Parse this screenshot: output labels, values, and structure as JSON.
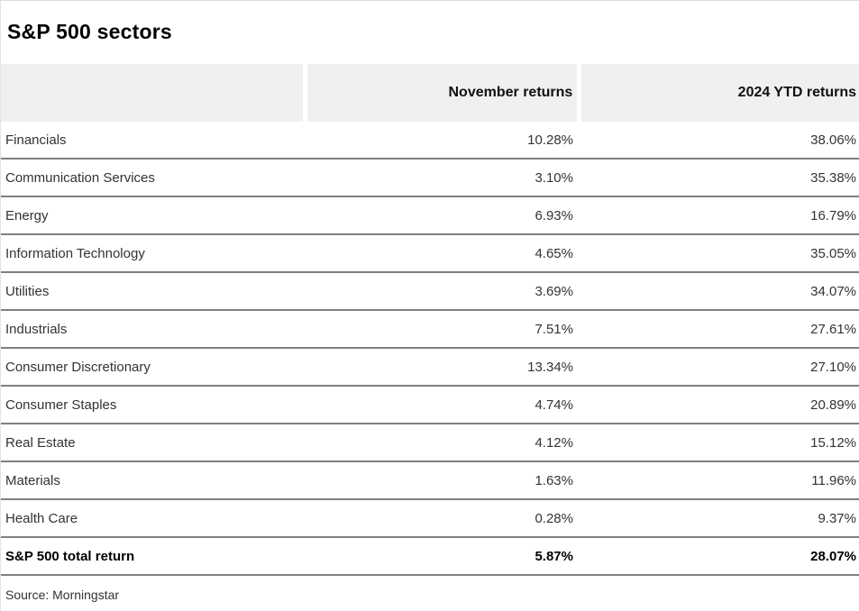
{
  "title": "S&P 500 sectors",
  "table": {
    "columns": [
      "",
      "November returns",
      "2024 YTD returns"
    ],
    "rows": [
      {
        "sector": "Financials",
        "november": "10.28%",
        "ytd": "38.06%"
      },
      {
        "sector": "Communication Services",
        "november": "3.10%",
        "ytd": "35.38%"
      },
      {
        "sector": "Energy",
        "november": "6.93%",
        "ytd": "16.79%"
      },
      {
        "sector": "Information Technology",
        "november": "4.65%",
        "ytd": "35.05%"
      },
      {
        "sector": "Utilities",
        "november": "3.69%",
        "ytd": "34.07%"
      },
      {
        "sector": "Industrials",
        "november": "7.51%",
        "ytd": "27.61%"
      },
      {
        "sector": "Consumer Discretionary",
        "november": "13.34%",
        "ytd": "27.10%"
      },
      {
        "sector": "Consumer Staples",
        "november": "4.74%",
        "ytd": "20.89%"
      },
      {
        "sector": "Real Estate",
        "november": "4.12%",
        "ytd": "15.12%"
      },
      {
        "sector": "Materials",
        "november": "1.63%",
        "ytd": "11.96%"
      },
      {
        "sector": "Health Care",
        "november": "0.28%",
        "ytd": "9.37%"
      }
    ],
    "total_row": {
      "sector": "S&P 500 total return",
      "november": "5.87%",
      "ytd": "28.07%"
    }
  },
  "source": "Source: Morningstar",
  "colors": {
    "header_bg": "#f0f0f0",
    "row_divider": "#7f7f7f",
    "body_text": "#333333",
    "bold_text": "#000000"
  },
  "chart_data": {
    "type": "table",
    "title": "S&P 500 sectors",
    "categories": [
      "Financials",
      "Communication Services",
      "Energy",
      "Information Technology",
      "Utilities",
      "Industrials",
      "Consumer Discretionary",
      "Consumer Staples",
      "Real Estate",
      "Materials",
      "Health Care",
      "S&P 500 total return"
    ],
    "series": [
      {
        "name": "November returns",
        "values": [
          10.28,
          3.1,
          6.93,
          4.65,
          3.69,
          7.51,
          13.34,
          4.74,
          4.12,
          1.63,
          0.28,
          5.87
        ]
      },
      {
        "name": "2024 YTD returns",
        "values": [
          38.06,
          35.38,
          16.79,
          35.05,
          34.07,
          27.61,
          27.1,
          20.89,
          15.12,
          11.96,
          9.37,
          28.07
        ]
      }
    ],
    "unit": "%",
    "source": "Source: Morningstar"
  }
}
